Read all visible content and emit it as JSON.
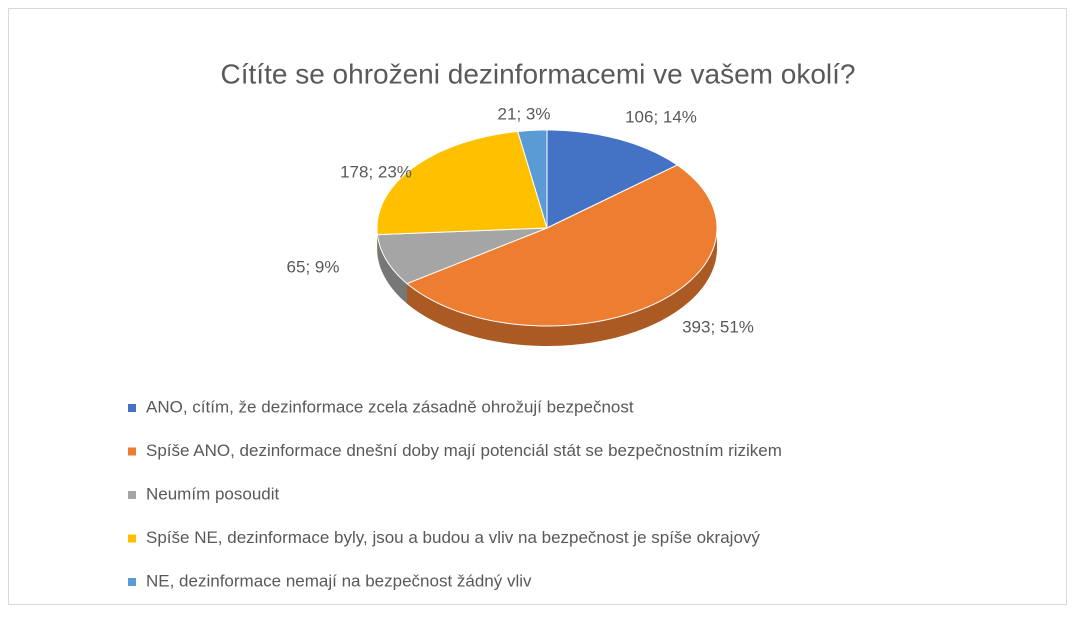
{
  "chart_data": {
    "type": "pie3d",
    "title": "Cítíte se ohroženi dezinformacemi ve vašem okolí?",
    "categories": [
      "ANO, cítím, že dezinformace zcela zásadně ohrožují bezpečnost",
      "Spíše ANO, dezinformace dnešní doby mají potenciál stát se bezpečnostním rizikem",
      "Neumím posoudit",
      "Spíše NE, dezinformace byly, jsou a budou a vliv na bezpečnost je spíše okrajový",
      "NE, dezinformace nemají na bezpečnost žádný vliv"
    ],
    "values": [
      106,
      393,
      65,
      178,
      21
    ],
    "value_labels": [
      "106; 14%",
      "393; 51%",
      "65; 9%",
      "178; 23%",
      "21; 3%"
    ],
    "colors": [
      "#4472c4",
      "#ed7d31",
      "#a5a5a5",
      "#ffc000",
      "#5b9bd5"
    ],
    "legend": "bottom"
  }
}
